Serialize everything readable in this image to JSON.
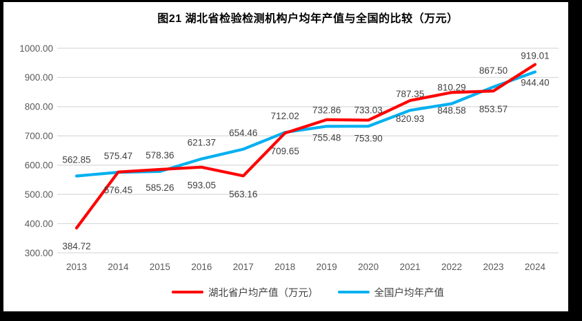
{
  "title": "图21 湖北省检验检测机构户均年产值与全国的比较（万元）",
  "chart_data": {
    "type": "line",
    "x": [
      2013,
      2014,
      2015,
      2016,
      2017,
      2018,
      2019,
      2020,
      2021,
      2022,
      2023,
      2024
    ],
    "series": [
      {
        "name": "湖北省户均产值（万元）",
        "color": "#FF0000",
        "label_position": "below",
        "values": [
          384.72,
          576.45,
          585.26,
          593.05,
          563.16,
          709.65,
          755.48,
          753.9,
          820.93,
          848.58,
          853.57,
          944.4
        ]
      },
      {
        "name": "全国户均年产值",
        "color": "#00B0F0",
        "label_position": "above",
        "values": [
          562.85,
          575.47,
          578.36,
          621.37,
          654.46,
          712.02,
          732.86,
          733.03,
          787.35,
          810.29,
          867.5,
          919.01
        ]
      }
    ],
    "ylim": [
      300,
      1000
    ],
    "y_ticks": [
      "1000.00",
      "900.00",
      "800.00",
      "700.00",
      "600.00",
      "500.00",
      "400.00",
      "300.00"
    ],
    "grid": true,
    "legend_position": "bottom",
    "label_decimals": 2,
    "colors": {
      "gridline": "#D9D9D9",
      "tick_label": "#595959",
      "data_label": "#404040",
      "frame": "#000000",
      "background": "#FFFFFF"
    }
  }
}
